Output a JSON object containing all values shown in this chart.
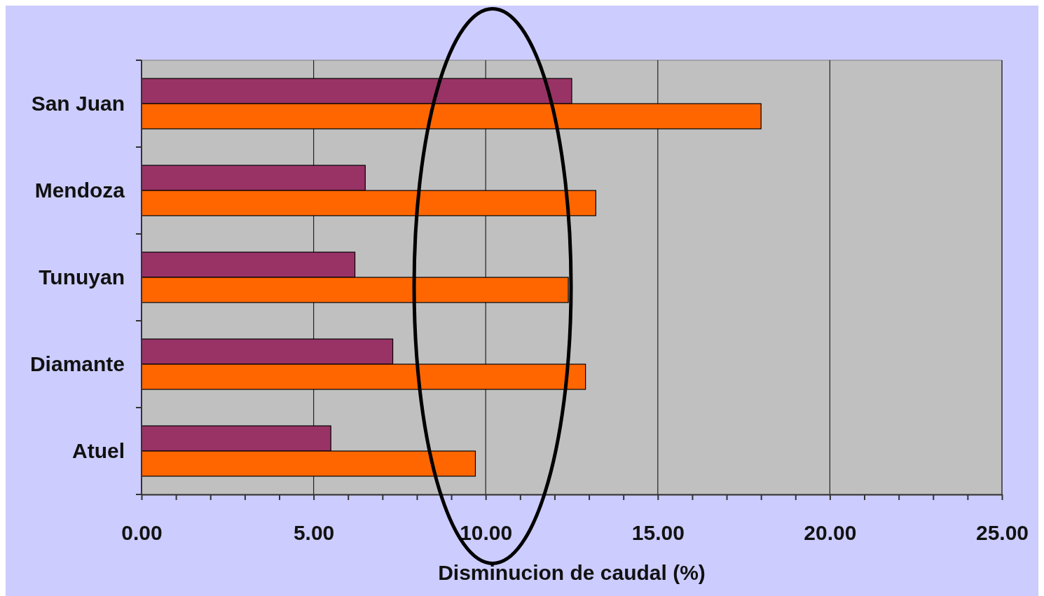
{
  "chart_data": {
    "type": "bar",
    "orientation": "horizontal",
    "xlabel": "Disminucion de caudal (%)",
    "categories": [
      "San Juan",
      "Mendoza",
      "Tunuyan",
      "Diamante",
      "Atuel"
    ],
    "series": [
      {
        "color": "#993366",
        "values": [
          12.5,
          6.5,
          6.2,
          7.3,
          5.5
        ]
      },
      {
        "color": "#ff6600",
        "values": [
          18.0,
          13.2,
          12.4,
          12.9,
          9.7
        ]
      }
    ],
    "xlim": [
      0,
      25
    ],
    "xticks": [
      {
        "value": 0,
        "label": "0.00"
      },
      {
        "value": 1,
        "label": null
      },
      {
        "value": 2,
        "label": null
      },
      {
        "value": 3,
        "label": null
      },
      {
        "value": 4,
        "label": null
      },
      {
        "value": 5,
        "label": "5.00"
      },
      {
        "value": 6,
        "label": null
      },
      {
        "value": 7,
        "label": null
      },
      {
        "value": 8,
        "label": null
      },
      {
        "value": 9,
        "label": null
      },
      {
        "value": 10,
        "label": "10.00"
      },
      {
        "value": 11,
        "label": null
      },
      {
        "value": 12,
        "label": null
      },
      {
        "value": 13,
        "label": null
      },
      {
        "value": 14,
        "label": null
      },
      {
        "value": 15,
        "label": "15.00"
      },
      {
        "value": 16,
        "label": null
      },
      {
        "value": 17,
        "label": null
      },
      {
        "value": 18,
        "label": null
      },
      {
        "value": 19,
        "label": null
      },
      {
        "value": 20,
        "label": "20.00"
      },
      {
        "value": 21,
        "label": null
      },
      {
        "value": 22,
        "label": null
      },
      {
        "value": 23,
        "label": null
      },
      {
        "value": 24,
        "label": null
      },
      {
        "value": 25,
        "label": "25.00"
      }
    ],
    "grid": "x"
  }
}
